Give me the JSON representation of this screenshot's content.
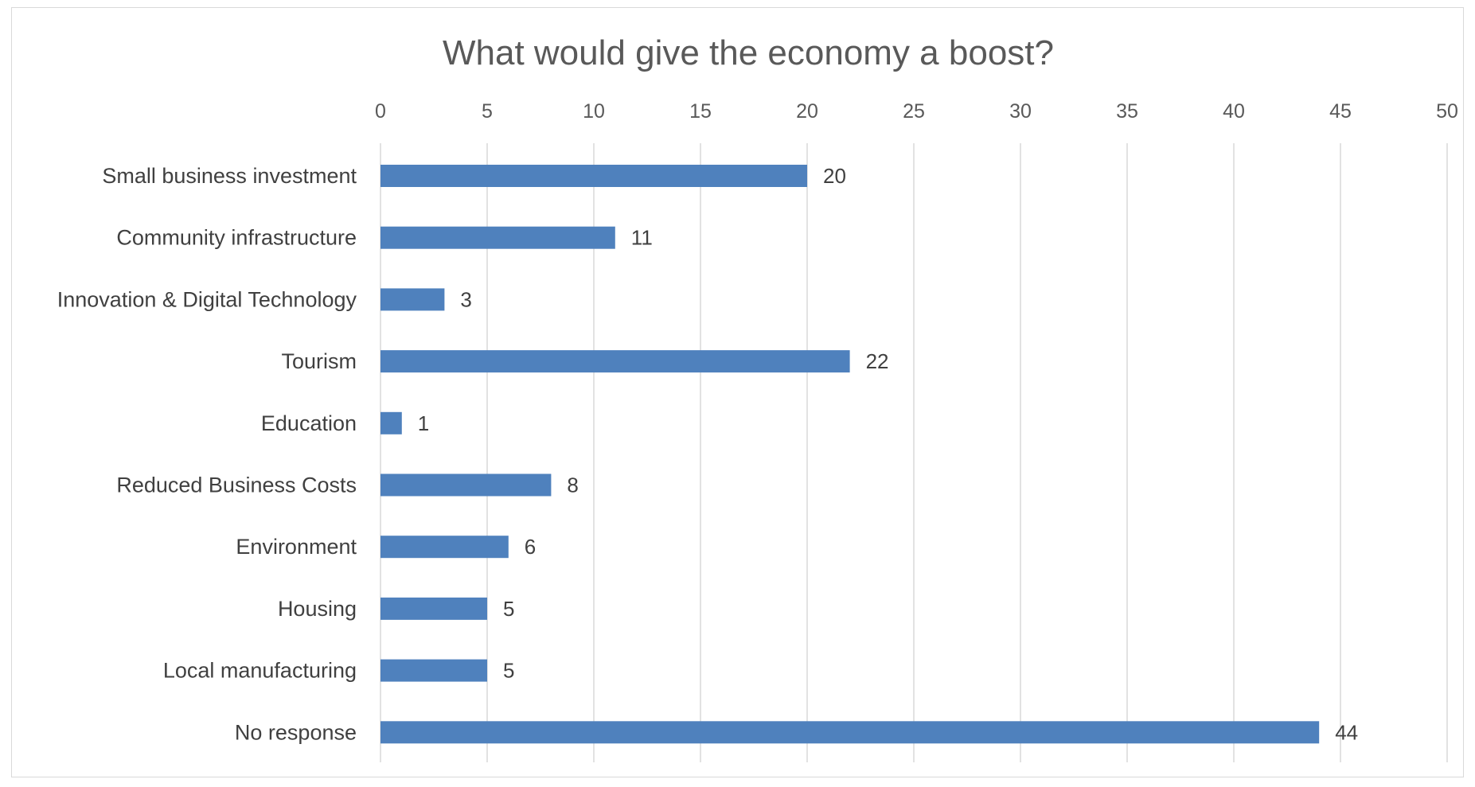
{
  "chart_data": {
    "type": "bar",
    "orientation": "horizontal",
    "title": "What would give the economy a boost?",
    "categories": [
      "Small business investment",
      "Community infrastructure",
      "Innovation & Digital Technology",
      "Tourism",
      "Education",
      "Reduced Business Costs",
      "Environment",
      "Housing",
      "Local manufacturing",
      "No response"
    ],
    "values": [
      20,
      11,
      3,
      22,
      1,
      8,
      6,
      5,
      5,
      44
    ],
    "xlim": [
      0,
      50
    ],
    "ticks": [
      0,
      5,
      10,
      15,
      20,
      25,
      30,
      35,
      40,
      45,
      50
    ],
    "xaxis_position": "top",
    "grid": true,
    "legend": "none",
    "data_labels": true,
    "bar_color": "#4f81bd",
    "grid_color": "#d9d9d9"
  }
}
